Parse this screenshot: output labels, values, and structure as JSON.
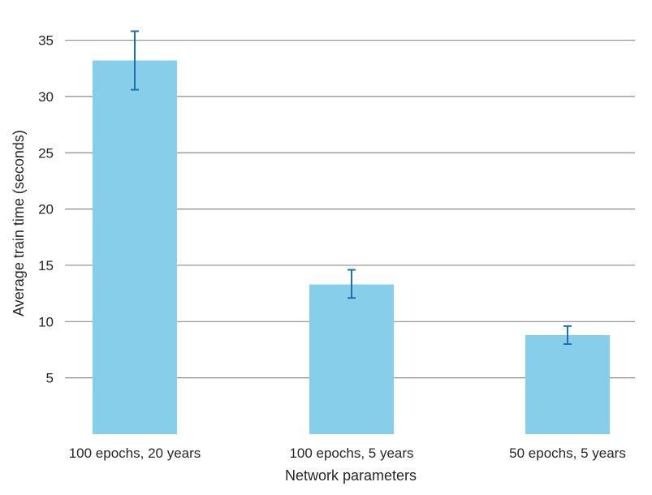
{
  "chart_data": {
    "type": "bar",
    "categories": [
      "100 epochs, 20 years",
      "100 epochs, 5 years",
      "50 epochs, 5 years"
    ],
    "values": [
      33.2,
      13.3,
      8.8
    ],
    "error_low": [
      30.6,
      12.1,
      8.0
    ],
    "error_high": [
      35.8,
      14.6,
      9.6
    ],
    "title": "",
    "xlabel": "Network parameters",
    "ylabel": "Average train time (seconds)",
    "ylim": [
      0,
      35.5
    ],
    "yticks": [
      5,
      10,
      15,
      20,
      25,
      30,
      35
    ],
    "grid": true,
    "legend": "none",
    "bar_color": "#87ceeb",
    "error_color": "#1f6fae",
    "grid_color": "#8c8c8c"
  }
}
